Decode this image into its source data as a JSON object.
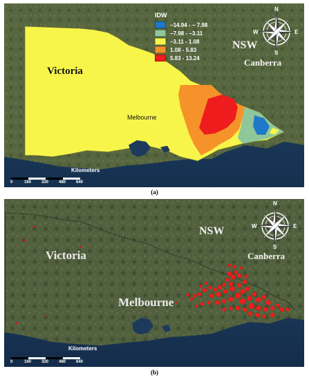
{
  "panels": [
    {
      "id": "a",
      "caption": "(a)",
      "state_label_left": "Victoria",
      "state_label_right": "NSW",
      "capital_label": "Canberra",
      "city_label": "Melbourne",
      "legend": {
        "title": "IDW",
        "classes": [
          {
            "label": "−14.94 - − 7.98",
            "color": "#1f78c8"
          },
          {
            "label": "−7.98 - −3.11",
            "color": "#8fc79a"
          },
          {
            "label": "−3.11 - 1.08",
            "color": "#f7f54a"
          },
          {
            "label": "1.08 - 5.83",
            "color": "#f5922a"
          },
          {
            "label": "5.83 - 13.24",
            "color": "#ee1c1c"
          }
        ]
      },
      "scale": {
        "title": "Kilometers",
        "ticks": [
          "0",
          "160",
          "320",
          "480",
          "640"
        ]
      },
      "compass": {
        "n": "N",
        "s": "S",
        "e": "E",
        "w": "W"
      }
    },
    {
      "id": "b",
      "caption": "(b)",
      "state_label_left": "Victoria",
      "state_label_right": "NSW",
      "capital_label": "Canberra",
      "city_label": "Melbourne",
      "scale": {
        "title": "Kilometers",
        "ticks": [
          "0",
          "160",
          "320",
          "480",
          "640"
        ]
      },
      "compass": {
        "n": "N",
        "s": "S",
        "e": "E",
        "w": "W"
      }
    }
  ],
  "colors": {
    "ocean": "#1d3a5c",
    "land": "#4b5a3a",
    "victoria_fill": "#f7f54a",
    "points": "#ff1a1a"
  }
}
